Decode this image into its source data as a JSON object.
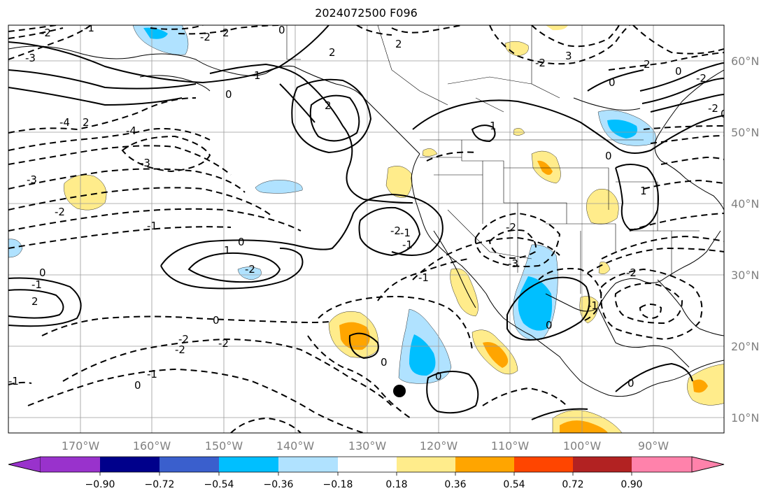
{
  "title": "2024072500 F096",
  "lon_labels": [
    "170°W",
    "160°W",
    "150°W",
    "140°W",
    "130°W",
    "120°W",
    "110°W",
    "100°W",
    "90°W"
  ],
  "lat_labels": [
    "60°N",
    "50°N",
    "40°N",
    "30°N",
    "20°N",
    "10°N"
  ],
  "colorbar": {
    "colors": [
      "#9932cc",
      "#00008b",
      "#3a5fcd",
      "#00bfff",
      "#b0e2ff",
      "#ffffff",
      "#ffec8b",
      "#ffa500",
      "#ff4500",
      "#b22222",
      "#ff82ab"
    ],
    "tick_labels": [
      "−0.90",
      "−0.72",
      "−0.54",
      "−0.36",
      "−0.18",
      "0.18",
      "0.36",
      "0.54",
      "0.72",
      "0.90"
    ]
  },
  "contour_labels": [
    "-2",
    "-1",
    "2",
    "-3",
    "-2",
    "2",
    "1",
    "0",
    "2",
    "-4",
    "-3",
    "-4",
    "3",
    "2",
    "2",
    "0",
    "-2",
    "-2",
    "0",
    "-2",
    "-3",
    "-2",
    "-1",
    "0",
    "-1",
    "1",
    "-2",
    "0",
    "2",
    "-1",
    "-2",
    "-1",
    "0",
    "-2",
    "-1",
    "-2",
    "-3",
    "1",
    "-2",
    "-1",
    "-1",
    "0",
    "0",
    "-2",
    "-1",
    "0",
    "0",
    "-2",
    "1",
    "0",
    "0",
    "0",
    "2",
    "0"
  ],
  "marker": "storm-center"
}
